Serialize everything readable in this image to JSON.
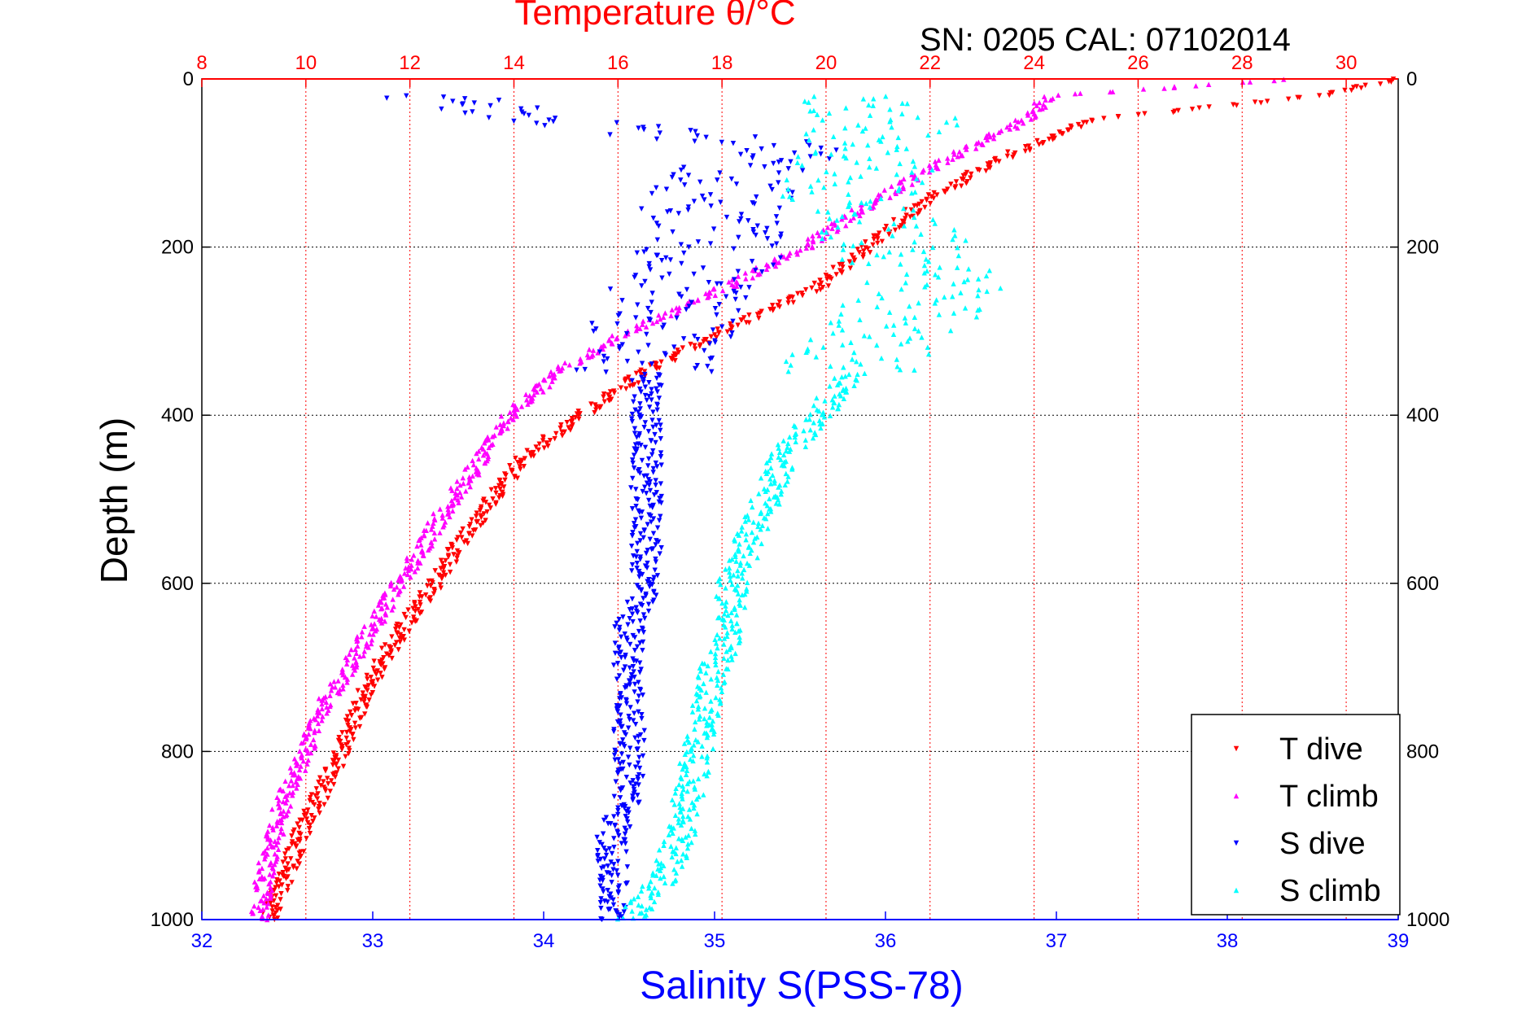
{
  "chart_data": {
    "type": "scatter",
    "title": "Temperature θ/°C",
    "subtitle": "SN: 0205  CAL: 07102014",
    "xlabel": "Salinity S(PSS-78)",
    "ylabel": "Depth (m)",
    "x_bottom": {
      "label": "Salinity S(PSS-78)",
      "lim": [
        32,
        39
      ],
      "ticks": [
        "32",
        "33",
        "34",
        "35",
        "36",
        "37",
        "38",
        "39"
      ],
      "color": "#0000ff"
    },
    "x_top": {
      "label": "Temperature θ/°C",
      "lim": [
        8,
        31
      ],
      "ticks": [
        "8",
        "10",
        "12",
        "14",
        "16",
        "18",
        "20",
        "22",
        "24",
        "26",
        "28",
        "30"
      ],
      "color": "#ff0000"
    },
    "y_left": {
      "lim": [
        1000,
        0
      ],
      "ticks": [
        "0",
        "200",
        "400",
        "600",
        "800",
        "1000"
      ],
      "reversed": true
    },
    "y_right": {
      "ticks": [
        "0",
        "200",
        "400",
        "600",
        "800",
        "1000"
      ]
    },
    "grid": true,
    "legend_position": "bottom-right",
    "series": [
      {
        "name": "T dive",
        "color": "#ff0000",
        "marker": "triangle-down",
        "axis": "temperature",
        "profile": [
          [
            0,
            31.0
          ],
          [
            20,
            29.5
          ],
          [
            50,
            25.0
          ],
          [
            100,
            23.2
          ],
          [
            150,
            21.8
          ],
          [
            200,
            20.8
          ],
          [
            250,
            19.8
          ],
          [
            300,
            18.0
          ],
          [
            350,
            16.5
          ],
          [
            400,
            15.3
          ],
          [
            450,
            14.2
          ],
          [
            500,
            13.6
          ],
          [
            550,
            13.0
          ],
          [
            600,
            12.5
          ],
          [
            650,
            11.9
          ],
          [
            700,
            11.4
          ],
          [
            750,
            11.0
          ],
          [
            800,
            10.7
          ],
          [
            850,
            10.3
          ],
          [
            900,
            9.9
          ],
          [
            950,
            9.6
          ],
          [
            1000,
            9.3
          ]
        ]
      },
      {
        "name": "T climb",
        "color": "#ff00ff",
        "marker": "triangle-up",
        "axis": "temperature",
        "profile": [
          [
            0,
            29.0
          ],
          [
            20,
            24.3
          ],
          [
            50,
            23.8
          ],
          [
            100,
            22.2
          ],
          [
            150,
            20.8
          ],
          [
            200,
            19.6
          ],
          [
            250,
            18.0
          ],
          [
            300,
            16.2
          ],
          [
            350,
            14.8
          ],
          [
            400,
            13.9
          ],
          [
            450,
            13.4
          ],
          [
            500,
            12.8
          ],
          [
            550,
            12.3
          ],
          [
            600,
            11.8
          ],
          [
            650,
            11.3
          ],
          [
            700,
            10.8
          ],
          [
            750,
            10.3
          ],
          [
            800,
            10.0
          ],
          [
            850,
            9.6
          ],
          [
            900,
            9.4
          ],
          [
            950,
            9.2
          ],
          [
            1000,
            9.1
          ]
        ]
      },
      {
        "name": "S dive",
        "color": "#0000ff",
        "marker": "triangle-down",
        "axis": "salinity",
        "profile": [
          [
            20,
            33.2
          ],
          [
            80,
            35.3
          ],
          [
            150,
            35.0
          ],
          [
            200,
            35.0
          ],
          [
            250,
            34.8
          ],
          [
            300,
            34.7
          ],
          [
            350,
            34.6
          ],
          [
            400,
            34.6
          ],
          [
            450,
            34.6
          ],
          [
            500,
            34.6
          ],
          [
            550,
            34.6
          ],
          [
            600,
            34.6
          ],
          [
            650,
            34.5
          ],
          [
            700,
            34.5
          ],
          [
            750,
            34.5
          ],
          [
            800,
            34.5
          ],
          [
            850,
            34.5
          ],
          [
            900,
            34.4
          ],
          [
            950,
            34.4
          ],
          [
            1000,
            34.4
          ]
        ]
      },
      {
        "name": "S climb",
        "color": "#00ffff",
        "marker": "triangle-up",
        "axis": "salinity",
        "profile": [
          [
            20,
            35.9
          ],
          [
            50,
            36.0
          ],
          [
            100,
            35.9
          ],
          [
            150,
            35.8
          ],
          [
            200,
            36.1
          ],
          [
            250,
            36.3
          ],
          [
            300,
            36.0
          ],
          [
            350,
            35.8
          ],
          [
            400,
            35.6
          ],
          [
            450,
            35.4
          ],
          [
            500,
            35.3
          ],
          [
            550,
            35.2
          ],
          [
            600,
            35.1
          ],
          [
            650,
            35.1
          ],
          [
            700,
            35.0
          ],
          [
            750,
            34.95
          ],
          [
            800,
            34.9
          ],
          [
            850,
            34.85
          ],
          [
            900,
            34.8
          ],
          [
            950,
            34.7
          ],
          [
            1000,
            34.5
          ]
        ]
      }
    ]
  }
}
